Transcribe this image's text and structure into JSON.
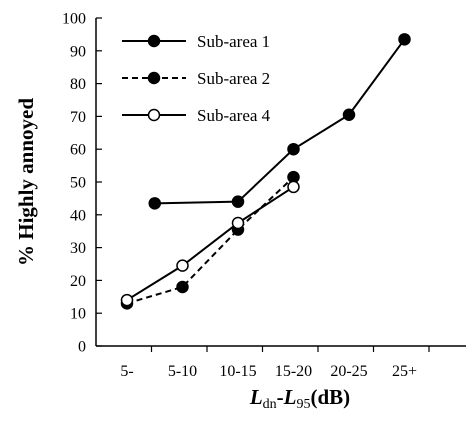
{
  "chart_data": {
    "type": "line",
    "categories": [
      "5-",
      "5-10",
      "10-15",
      "15-20",
      "20-25",
      "25+"
    ],
    "ylabel": "% Highly annoyed",
    "xlabel": {
      "base1": "L",
      "sub1": "dn",
      "sep": "-",
      "base2": "L",
      "sub2": "95",
      "unit": "(dB)"
    },
    "ylim": [
      0,
      100
    ],
    "yticks": [
      0,
      10,
      20,
      30,
      40,
      50,
      60,
      70,
      80,
      90,
      100
    ],
    "grid": false,
    "legend_position": "top-left",
    "series": [
      {
        "name": "Sub-area 1",
        "line_style": "solid",
        "marker": "filled-circle",
        "points": [
          {
            "x": 1.5,
            "y": 43.5
          },
          {
            "x": 3.0,
            "y": 44
          },
          {
            "x": 4.0,
            "y": 60
          },
          {
            "x": 5.0,
            "y": 70.5
          },
          {
            "x": 6.0,
            "y": 93.5
          }
        ]
      },
      {
        "name": "Sub-area 2",
        "line_style": "dashed",
        "marker": "filled-circle",
        "points": [
          {
            "x": 1.0,
            "y": 13
          },
          {
            "x": 2.0,
            "y": 18
          },
          {
            "x": 3.0,
            "y": 35.5
          },
          {
            "x": 4.0,
            "y": 51.5
          }
        ]
      },
      {
        "name": "Sub-area 4",
        "line_style": "solid",
        "marker": "open-circle",
        "points": [
          {
            "x": 1.0,
            "y": 14
          },
          {
            "x": 2.0,
            "y": 24.5
          },
          {
            "x": 3.0,
            "y": 37.5
          },
          {
            "x": 4.0,
            "y": 48.5
          }
        ]
      }
    ]
  }
}
